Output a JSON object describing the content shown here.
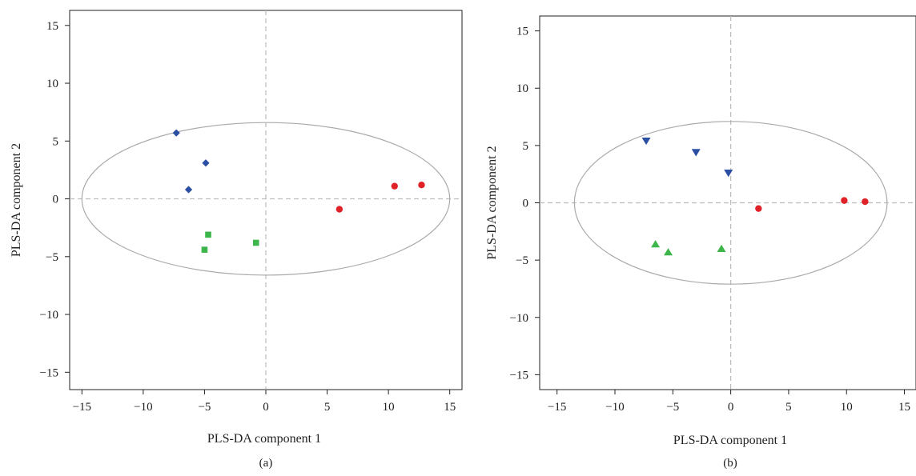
{
  "chart_data": [
    {
      "type": "scatter",
      "panel_label": "(a)",
      "xlabel": "PLS-DA component 1",
      "ylabel": "PLS-DA component 2",
      "xlim": [
        -16,
        16
      ],
      "ylim": [
        -16.5,
        16.3
      ],
      "xticks": [
        -15,
        -10,
        -5,
        0,
        5,
        10,
        15
      ],
      "yticks": [
        -15,
        -10,
        -5,
        0,
        5,
        10,
        15
      ],
      "reference_lines": {
        "x": 0,
        "y": 0,
        "style": "dashed"
      },
      "ellipse": {
        "cx": 0,
        "cy": 0,
        "rx": 15.0,
        "ry": 6.6
      },
      "series": [
        {
          "marker": "diamond",
          "color": "#2b4fa3",
          "x": [
            -7.3,
            -4.9,
            -6.3
          ],
          "y": [
            5.7,
            3.1,
            0.8
          ]
        },
        {
          "marker": "square",
          "color": "#3cb54a",
          "x": [
            -4.7,
            -5.0,
            -0.8
          ],
          "y": [
            -3.1,
            -4.4,
            -3.8
          ]
        },
        {
          "marker": "circle",
          "color": "#e02228",
          "x": [
            6.0,
            10.5,
            12.7
          ],
          "y": [
            -0.9,
            1.1,
            1.2
          ]
        }
      ]
    },
    {
      "type": "scatter",
      "panel_label": "(b)",
      "xlabel": "PLS-DA component 1",
      "ylabel": "PLS-DA component 2",
      "xlim": [
        -16.5,
        16
      ],
      "ylim": [
        -16.3,
        16.3
      ],
      "xticks": [
        -15,
        -10,
        -5,
        0,
        5,
        10,
        15
      ],
      "yticks": [
        -15,
        -10,
        -5,
        0,
        5,
        10,
        15
      ],
      "reference_lines": {
        "x": 0,
        "y": 0,
        "style": "dashed"
      },
      "ellipse": {
        "cx": 0,
        "cy": 0,
        "rx": 13.5,
        "ry": 7.1
      },
      "series": [
        {
          "marker": "triangle-down",
          "color": "#2b4fa3",
          "x": [
            -7.3,
            -3.0,
            -0.2
          ],
          "y": [
            5.4,
            4.4,
            2.6
          ]
        },
        {
          "marker": "triangle-up",
          "color": "#3cb54a",
          "x": [
            -6.5,
            -5.4,
            -0.8
          ],
          "y": [
            -3.6,
            -4.3,
            -4.0
          ]
        },
        {
          "marker": "circle",
          "color": "#e02228",
          "x": [
            2.4,
            9.8,
            11.6
          ],
          "y": [
            -0.5,
            0.2,
            0.1
          ]
        }
      ]
    }
  ]
}
